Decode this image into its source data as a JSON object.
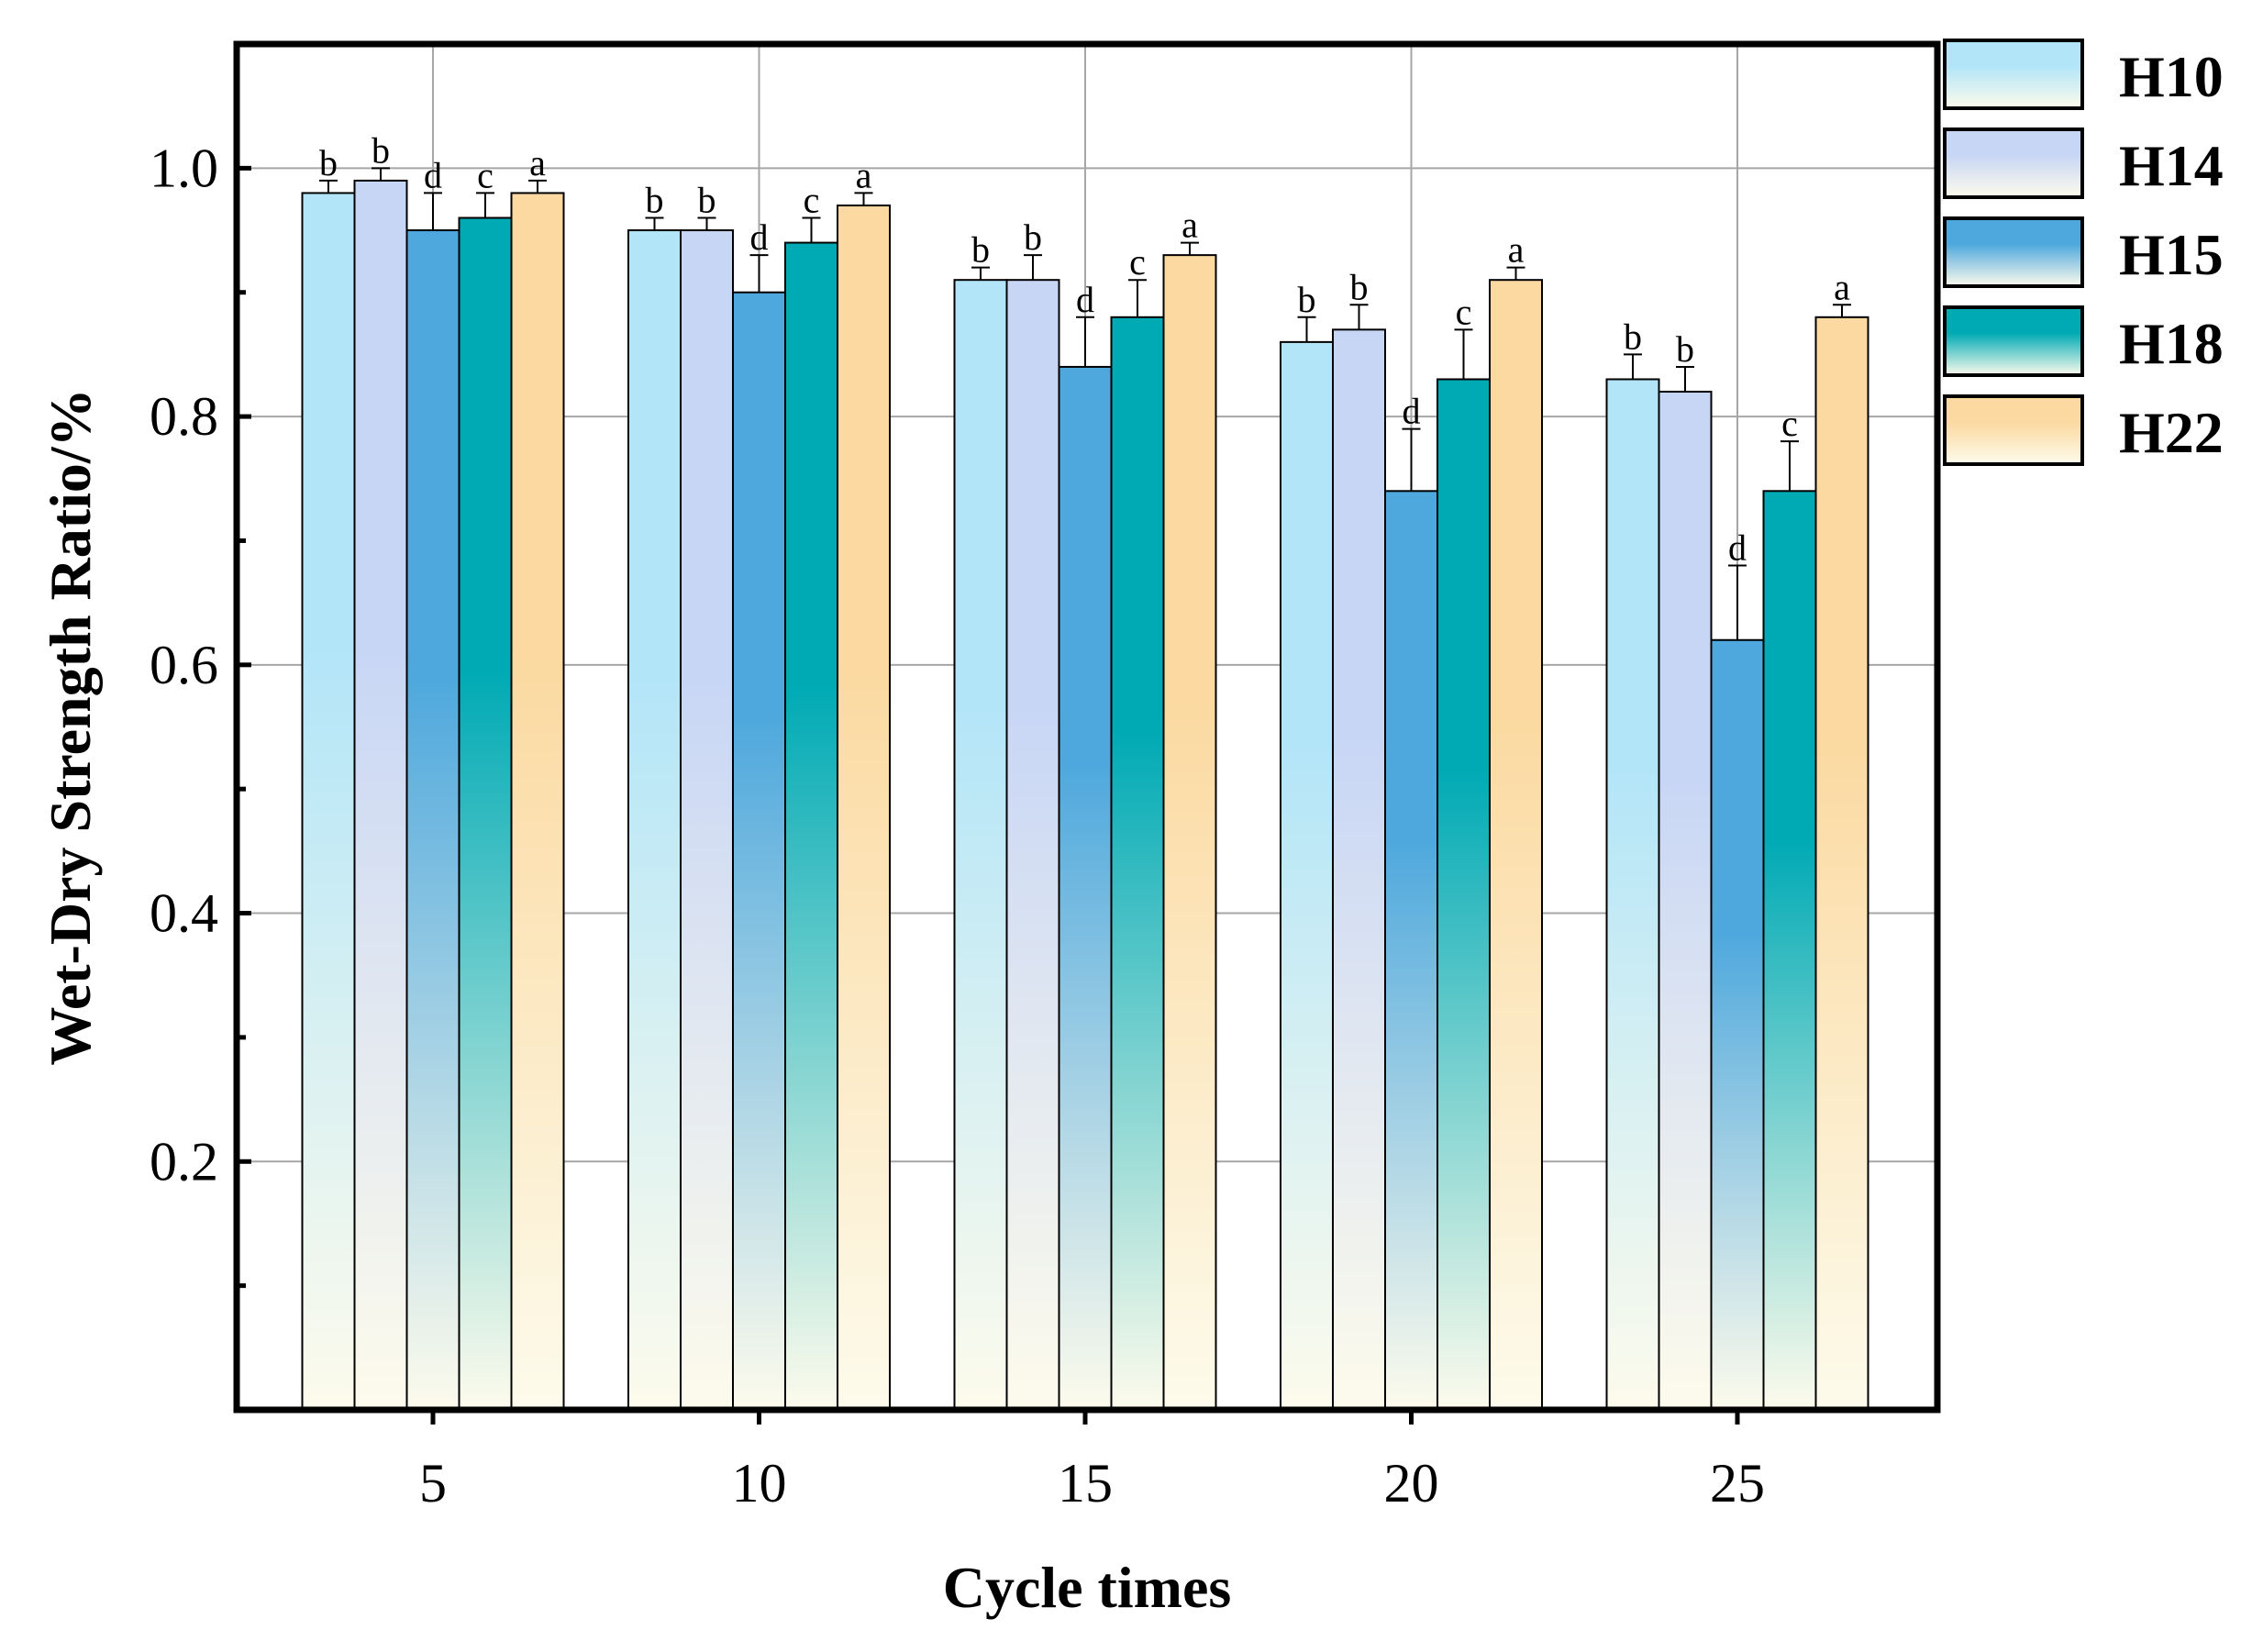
{
  "chart_data": {
    "type": "bar",
    "title": "",
    "xlabel": "Cycle times",
    "ylabel": "Wet-Dry Strength Ratio/%",
    "categories": [
      "5",
      "10",
      "15",
      "20",
      "25"
    ],
    "ylim": [
      0,
      1.1
    ],
    "yticks": [
      "0.2",
      "0.4",
      "0.6",
      "0.8",
      "1.0"
    ],
    "grid": true,
    "legend_position": "right",
    "series": [
      {
        "name": "H10",
        "values": [
          0.98,
          0.95,
          0.91,
          0.86,
          0.83
        ],
        "errors": [
          0.01,
          0.01,
          0.01,
          0.02,
          0.02
        ],
        "labels": [
          "b",
          "b",
          "b",
          "b",
          "b"
        ],
        "color": "#b3e5f8"
      },
      {
        "name": "H14",
        "values": [
          0.99,
          0.95,
          0.91,
          0.87,
          0.82
        ],
        "errors": [
          0.01,
          0.01,
          0.02,
          0.02,
          0.02
        ],
        "labels": [
          "b",
          "b",
          "b",
          "b",
          "b"
        ],
        "color": "#c8d6f5"
      },
      {
        "name": "H15",
        "values": [
          0.95,
          0.9,
          0.84,
          0.74,
          0.62
        ],
        "errors": [
          0.03,
          0.03,
          0.04,
          0.05,
          0.06
        ],
        "labels": [
          "d",
          "d",
          "d",
          "d",
          "d"
        ],
        "color": "#4ea8dd"
      },
      {
        "name": "H18",
        "values": [
          0.96,
          0.94,
          0.88,
          0.83,
          0.74
        ],
        "errors": [
          0.02,
          0.02,
          0.03,
          0.04,
          0.04
        ],
        "labels": [
          "c",
          "c",
          "c",
          "c",
          "c"
        ],
        "color": "#00aab5"
      },
      {
        "name": "H22",
        "values": [
          0.98,
          0.97,
          0.93,
          0.91,
          0.88
        ],
        "errors": [
          0.01,
          0.01,
          0.01,
          0.01,
          0.01
        ],
        "labels": [
          "a",
          "a",
          "a",
          "a",
          "a"
        ],
        "color": "#fbd9a0"
      }
    ]
  }
}
